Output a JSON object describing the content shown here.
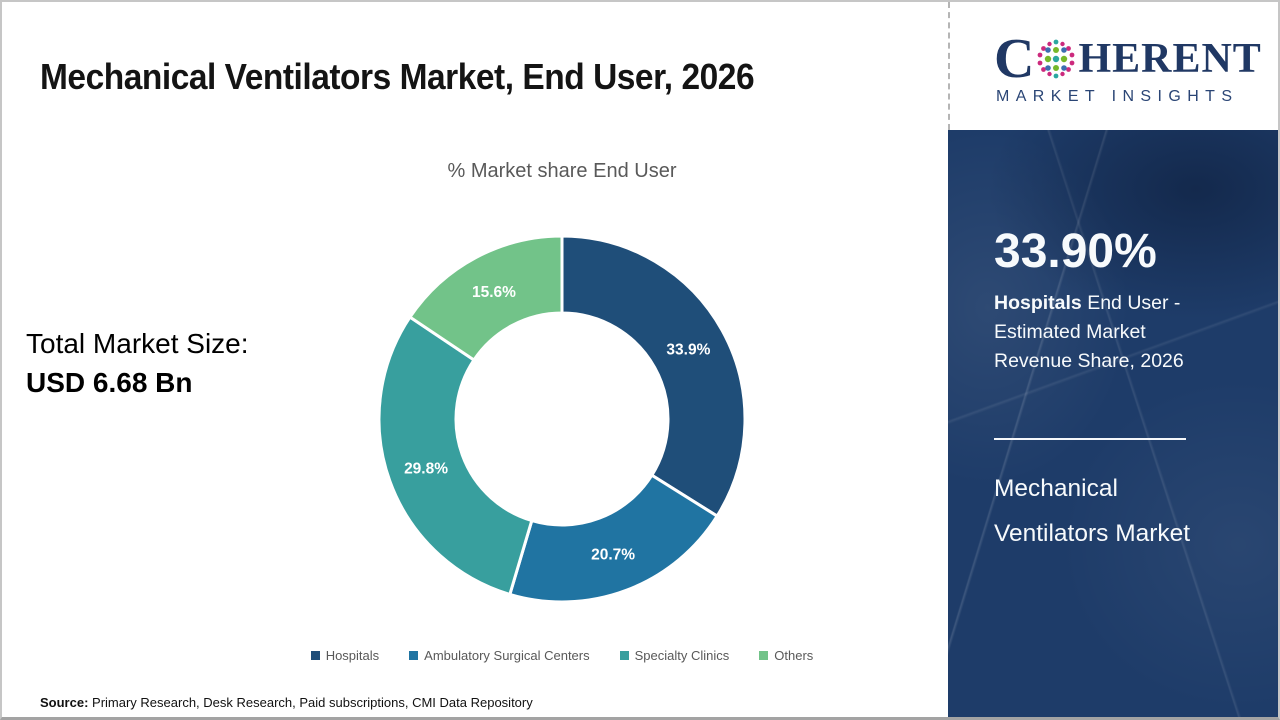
{
  "header": {
    "title": "Mechanical Ventilators Market, End User, 2026"
  },
  "logo": {
    "text_start": "C",
    "text_end": "HERENT",
    "subtitle": "MARKET INSIGHTS",
    "text_color": "#203864",
    "globe_icon": "dotted-globe"
  },
  "total_market_size": {
    "label": "Total Market Size:",
    "value": "USD 6.68 Bn"
  },
  "chart_data": {
    "type": "pie",
    "subtype": "donut",
    "title": "% Market share End User",
    "categories": [
      "Hospitals",
      "Ambulatory Surgical Centers",
      "Specialty Clinics",
      "Others"
    ],
    "values": [
      33.9,
      20.7,
      29.8,
      15.6
    ],
    "labels": [
      "33.9%",
      "20.7%",
      "29.8%",
      "15.6%"
    ],
    "colors": [
      "#1f4e79",
      "#2074a2",
      "#389f9e",
      "#72c389"
    ],
    "start_angle_deg": 0,
    "direction": "clockwise",
    "donut_hole_ratio": 0.58,
    "legend_position": "bottom",
    "label_color": "#ffffff"
  },
  "source": {
    "label": "Source:",
    "text": "Primary Research, Desk Research, Paid subscriptions, CMI Data Repository"
  },
  "sidebar": {
    "panel_color": "#1e3c69",
    "highlight_value": "33.90%",
    "highlight_bold": "Hospitals",
    "highlight_rest": "End User - Estimated Market Revenue Share, 2026",
    "market_name": "Mechanical Ventilators Market"
  }
}
